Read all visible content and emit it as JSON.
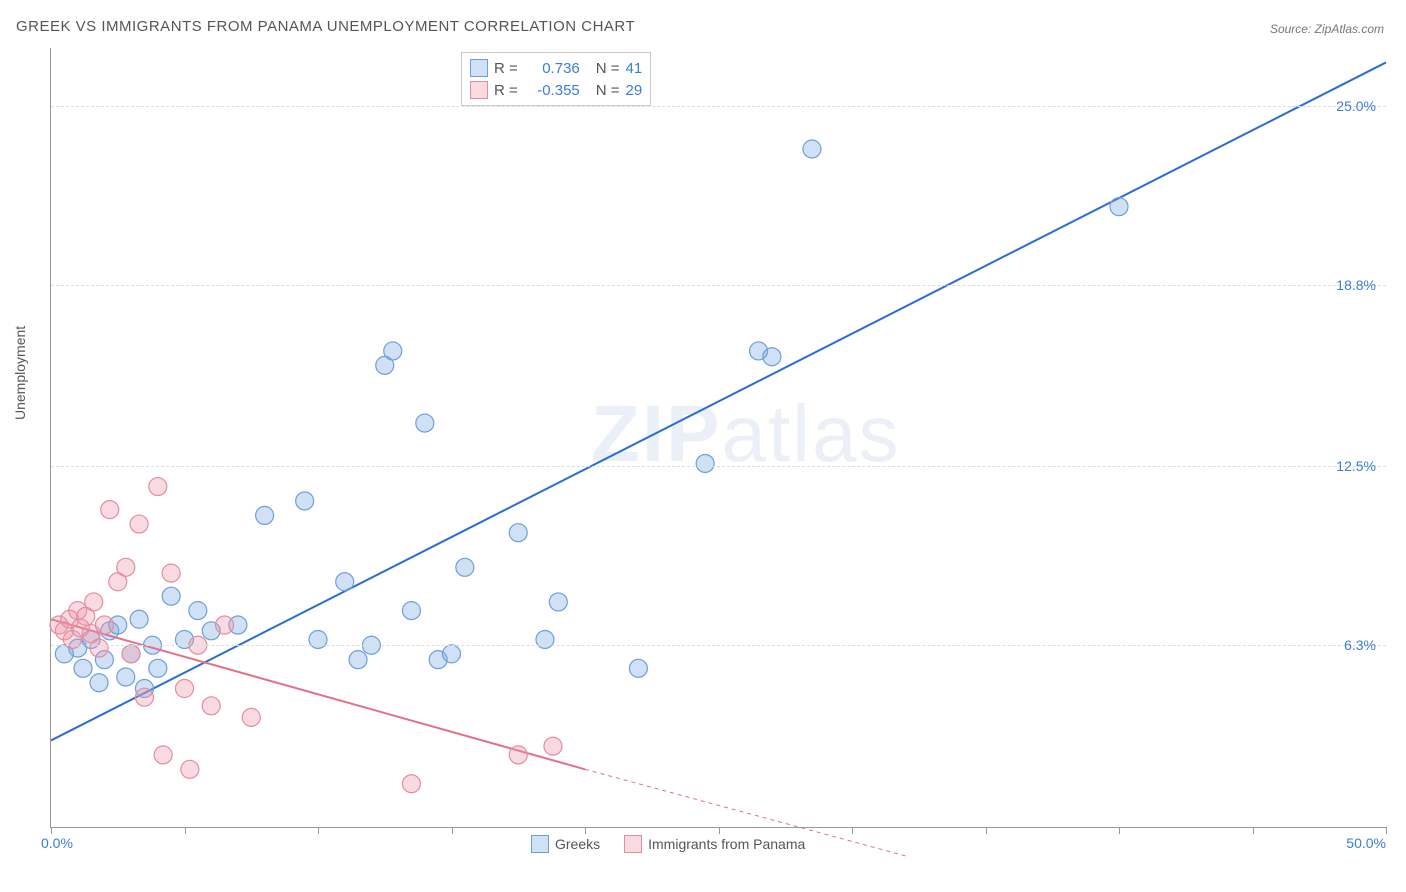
{
  "title": "GREEK VS IMMIGRANTS FROM PANAMA UNEMPLOYMENT CORRELATION CHART",
  "source": "Source: ZipAtlas.com",
  "y_axis_label": "Unemployment",
  "watermark_a": "ZIP",
  "watermark_b": "atlas",
  "chart": {
    "type": "scatter",
    "xlim": [
      0,
      50
    ],
    "ylim": [
      0,
      27
    ],
    "x_label_min": "0.0%",
    "x_label_max": "50.0%",
    "y_grid": [
      {
        "value": 6.3,
        "label": "6.3%"
      },
      {
        "value": 12.5,
        "label": "12.5%"
      },
      {
        "value": 18.8,
        "label": "18.8%"
      },
      {
        "value": 25.0,
        "label": "25.0%"
      }
    ],
    "x_ticks": [
      0,
      5,
      10,
      15,
      20,
      25,
      30,
      35,
      40,
      45,
      50
    ],
    "grid_color": "#dddddd",
    "axis_color": "#999999",
    "background_color": "#ffffff",
    "marker_radius": 9,
    "marker_stroke_width": 1.2,
    "line_width": 2,
    "tick_label_color_blue": "#3b7dd8",
    "series": [
      {
        "name": "Greeks",
        "legend_label": "Greeks",
        "fill": "rgba(120,165,225,0.35)",
        "stroke": "#6f9fd8",
        "line_color": "#2b6cd4",
        "R_label": "R =",
        "R": "0.736",
        "N_label": "N =",
        "N": "41",
        "trend": {
          "x1": 0,
          "y1": 3.0,
          "x2": 50,
          "y2": 26.5,
          "dash_from_x": 50
        },
        "points": [
          [
            0.5,
            6.0
          ],
          [
            1.0,
            6.2
          ],
          [
            1.2,
            5.5
          ],
          [
            1.5,
            6.5
          ],
          [
            1.8,
            5.0
          ],
          [
            2.0,
            5.8
          ],
          [
            2.2,
            6.8
          ],
          [
            2.5,
            7.0
          ],
          [
            2.8,
            5.2
          ],
          [
            3.0,
            6.0
          ],
          [
            3.3,
            7.2
          ],
          [
            3.5,
            4.8
          ],
          [
            3.8,
            6.3
          ],
          [
            4.0,
            5.5
          ],
          [
            4.5,
            8.0
          ],
          [
            5.0,
            6.5
          ],
          [
            5.5,
            7.5
          ],
          [
            6.0,
            6.8
          ],
          [
            7.0,
            7.0
          ],
          [
            8.0,
            10.8
          ],
          [
            9.5,
            11.3
          ],
          [
            10.0,
            6.5
          ],
          [
            11.0,
            8.5
          ],
          [
            11.5,
            5.8
          ],
          [
            12.0,
            6.3
          ],
          [
            12.5,
            16.0
          ],
          [
            12.8,
            16.5
          ],
          [
            13.5,
            7.5
          ],
          [
            14.0,
            14.0
          ],
          [
            14.5,
            5.8
          ],
          [
            15.0,
            6.0
          ],
          [
            15.5,
            9.0
          ],
          [
            17.5,
            10.2
          ],
          [
            18.5,
            6.5
          ],
          [
            19.0,
            7.8
          ],
          [
            22.0,
            5.5
          ],
          [
            24.5,
            12.6
          ],
          [
            26.5,
            16.5
          ],
          [
            27.0,
            16.3
          ],
          [
            28.5,
            23.5
          ],
          [
            40.0,
            21.5
          ]
        ]
      },
      {
        "name": "Immigrants from Panama",
        "legend_label": "Immigrants from Panama",
        "fill": "rgba(240,150,170,0.35)",
        "stroke": "#e08fa0",
        "line_color": "#e36f8a",
        "R_label": "R =",
        "R": "-0.355",
        "N_label": "N =",
        "N": "29",
        "trend": {
          "x1": 0,
          "y1": 7.2,
          "x2": 20,
          "y2": 2.0,
          "dash_from_x": 20,
          "dash_x2": 32,
          "dash_y2": -1.0
        },
        "points": [
          [
            0.3,
            7.0
          ],
          [
            0.5,
            6.8
          ],
          [
            0.7,
            7.2
          ],
          [
            0.8,
            6.5
          ],
          [
            1.0,
            7.5
          ],
          [
            1.1,
            6.9
          ],
          [
            1.3,
            7.3
          ],
          [
            1.5,
            6.7
          ],
          [
            1.6,
            7.8
          ],
          [
            1.8,
            6.2
          ],
          [
            2.0,
            7.0
          ],
          [
            2.2,
            11.0
          ],
          [
            2.5,
            8.5
          ],
          [
            2.8,
            9.0
          ],
          [
            3.0,
            6.0
          ],
          [
            3.3,
            10.5
          ],
          [
            3.5,
            4.5
          ],
          [
            4.0,
            11.8
          ],
          [
            4.2,
            2.5
          ],
          [
            4.5,
            8.8
          ],
          [
            5.0,
            4.8
          ],
          [
            5.2,
            2.0
          ],
          [
            5.5,
            6.3
          ],
          [
            6.0,
            4.2
          ],
          [
            6.5,
            7.0
          ],
          [
            7.5,
            3.8
          ],
          [
            13.5,
            1.5
          ],
          [
            17.5,
            2.5
          ],
          [
            18.8,
            2.8
          ]
        ]
      }
    ]
  }
}
